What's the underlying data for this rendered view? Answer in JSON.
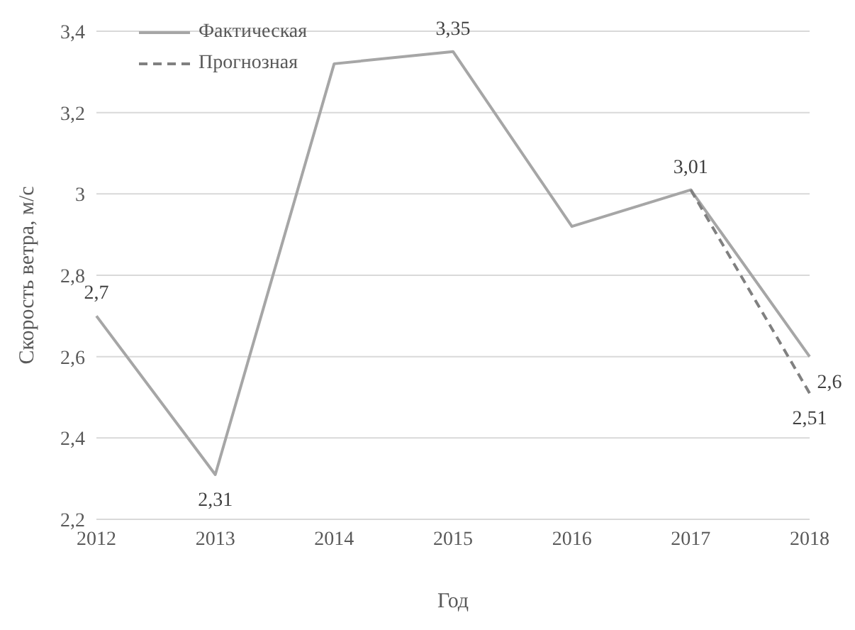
{
  "chart_data": {
    "type": "line",
    "xlabel": "Год",
    "ylabel": "Скорость ветра, м/с",
    "categories": [
      "2012",
      "2013",
      "2014",
      "2015",
      "2016",
      "2017",
      "2018"
    ],
    "series": [
      {
        "name": "Фактическая",
        "color": "#a6a6a6",
        "line_style": "solid",
        "values": [
          2.7,
          2.31,
          3.32,
          3.35,
          2.92,
          3.01,
          2.6
        ],
        "value_labels": [
          "2,7",
          "2,31",
          null,
          "3,35",
          null,
          "3,01",
          "2,6"
        ]
      },
      {
        "name": "Прогнозная",
        "color": "#808080",
        "line_style": "dashed",
        "values": [
          null,
          null,
          null,
          null,
          null,
          3.01,
          2.51
        ],
        "value_labels": [
          null,
          null,
          null,
          null,
          null,
          null,
          "2,51"
        ]
      }
    ],
    "ylim": [
      2.2,
      3.4
    ],
    "yticks": [
      {
        "value": 2.2,
        "label": "2,2"
      },
      {
        "value": 2.4,
        "label": "2,4"
      },
      {
        "value": 2.6,
        "label": "2,6"
      },
      {
        "value": 2.8,
        "label": "2,8"
      },
      {
        "value": 3,
        "label": "3"
      },
      {
        "value": 3.2,
        "label": "3,2"
      },
      {
        "value": 3.4,
        "label": "3,4"
      }
    ],
    "grid": "y",
    "legend": "top left",
    "marker": "none"
  }
}
